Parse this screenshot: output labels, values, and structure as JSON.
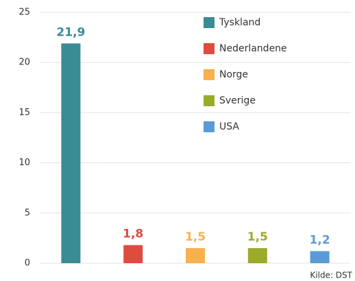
{
  "chart_data": {
    "type": "bar",
    "categories": [
      "Tyskland",
      "Nederlandene",
      "Norge",
      "Sverige",
      "USA"
    ],
    "values": [
      21.9,
      1.8,
      1.5,
      1.5,
      1.2
    ],
    "value_labels": [
      "21,9",
      "1,8",
      "1,5",
      "1,5",
      "1,2"
    ],
    "colors": [
      "#3a8c93",
      "#e04b3f",
      "#f9b04f",
      "#9aab2a",
      "#5b9bd5"
    ],
    "ylim": [
      0,
      25
    ],
    "yticks": [
      0,
      5,
      10,
      15,
      20,
      25
    ],
    "grid": true,
    "legend": "top-right",
    "source": "Kilde: DST"
  }
}
